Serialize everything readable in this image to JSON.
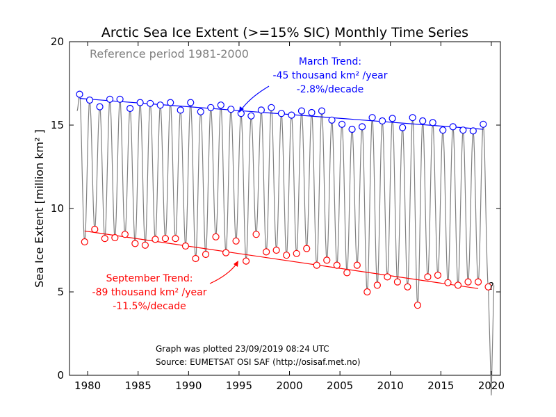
{
  "chart_data": {
    "type": "line",
    "title": "Arctic Sea Ice Extent (>=15% SIC) Monthly Time Series",
    "ylabel": "Sea Ice Extent [million km² ]",
    "xlabel": "",
    "xlim": [
      1978.2,
      2020.9
    ],
    "ylim": [
      0,
      20
    ],
    "xticks": [
      "1980",
      "1985",
      "1990",
      "1995",
      "2000",
      "2005",
      "2010",
      "2015",
      "2020"
    ],
    "yticks": [
      "0",
      "5",
      "10",
      "15",
      "20"
    ],
    "grid": false,
    "reference_text": "Reference period 1981-2000",
    "march_annotation": [
      "March Trend:",
      "-45 thousand km² /year",
      "-2.8%/decade"
    ],
    "september_annotation": [
      "September Trend:",
      "-89 thousand km² /year",
      "-11.5%/decade"
    ],
    "footnotes": [
      "Graph was plotted 23/09/2019 08:24 UTC",
      "Source: EUMETSAT OSI SAF (http://osisaf.met.no)"
    ],
    "pending_marker": "?",
    "colors": {
      "march": "#0000ff",
      "september": "#ff0000",
      "monthly": "#808080"
    },
    "march": {
      "years": [
        1979,
        1980,
        1981,
        1982,
        1983,
        1984,
        1985,
        1986,
        1987,
        1988,
        1989,
        1990,
        1991,
        1992,
        1993,
        1994,
        1995,
        1996,
        1997,
        1998,
        1999,
        2000,
        2001,
        2002,
        2003,
        2004,
        2005,
        2006,
        2007,
        2008,
        2009,
        2010,
        2011,
        2012,
        2013,
        2014,
        2015,
        2016,
        2017,
        2018,
        2019
      ],
      "values": [
        16.85,
        16.5,
        16.1,
        16.55,
        16.55,
        16.0,
        16.35,
        16.3,
        16.2,
        16.35,
        15.9,
        16.35,
        15.8,
        16.05,
        16.2,
        15.95,
        15.7,
        15.55,
        15.9,
        16.05,
        15.7,
        15.6,
        15.85,
        15.75,
        15.85,
        15.3,
        15.05,
        14.75,
        14.9,
        15.45,
        15.25,
        15.4,
        14.85,
        15.45,
        15.25,
        15.15,
        14.7,
        14.9,
        14.7,
        14.65,
        15.05
      ]
    },
    "september": {
      "years": [
        1979,
        1980,
        1981,
        1982,
        1983,
        1984,
        1985,
        1986,
        1987,
        1988,
        1989,
        1990,
        1991,
        1992,
        1993,
        1994,
        1995,
        1996,
        1997,
        1998,
        1999,
        2000,
        2001,
        2002,
        2003,
        2004,
        2005,
        2006,
        2007,
        2008,
        2009,
        2010,
        2011,
        2012,
        2013,
        2014,
        2015,
        2016,
        2017,
        2018,
        2019
      ],
      "values": [
        8.0,
        8.75,
        8.2,
        8.25,
        8.45,
        7.9,
        7.8,
        8.15,
        8.2,
        8.2,
        7.75,
        7.0,
        7.25,
        8.3,
        7.35,
        8.05,
        6.85,
        8.45,
        7.4,
        7.5,
        7.2,
        7.3,
        7.6,
        6.6,
        6.9,
        6.6,
        6.15,
        6.6,
        5.0,
        5.4,
        5.9,
        5.6,
        5.3,
        4.2,
        5.9,
        6.0,
        5.55,
        5.4,
        5.6,
        5.6,
        5.3
      ]
    },
    "trends": {
      "march": {
        "x": [
          1979.2,
          2019.2
        ],
        "y": [
          16.6,
          14.75
        ]
      },
      "september": {
        "x": [
          1979.7,
          2018.7
        ],
        "y": [
          8.65,
          5.2
        ]
      }
    }
  }
}
